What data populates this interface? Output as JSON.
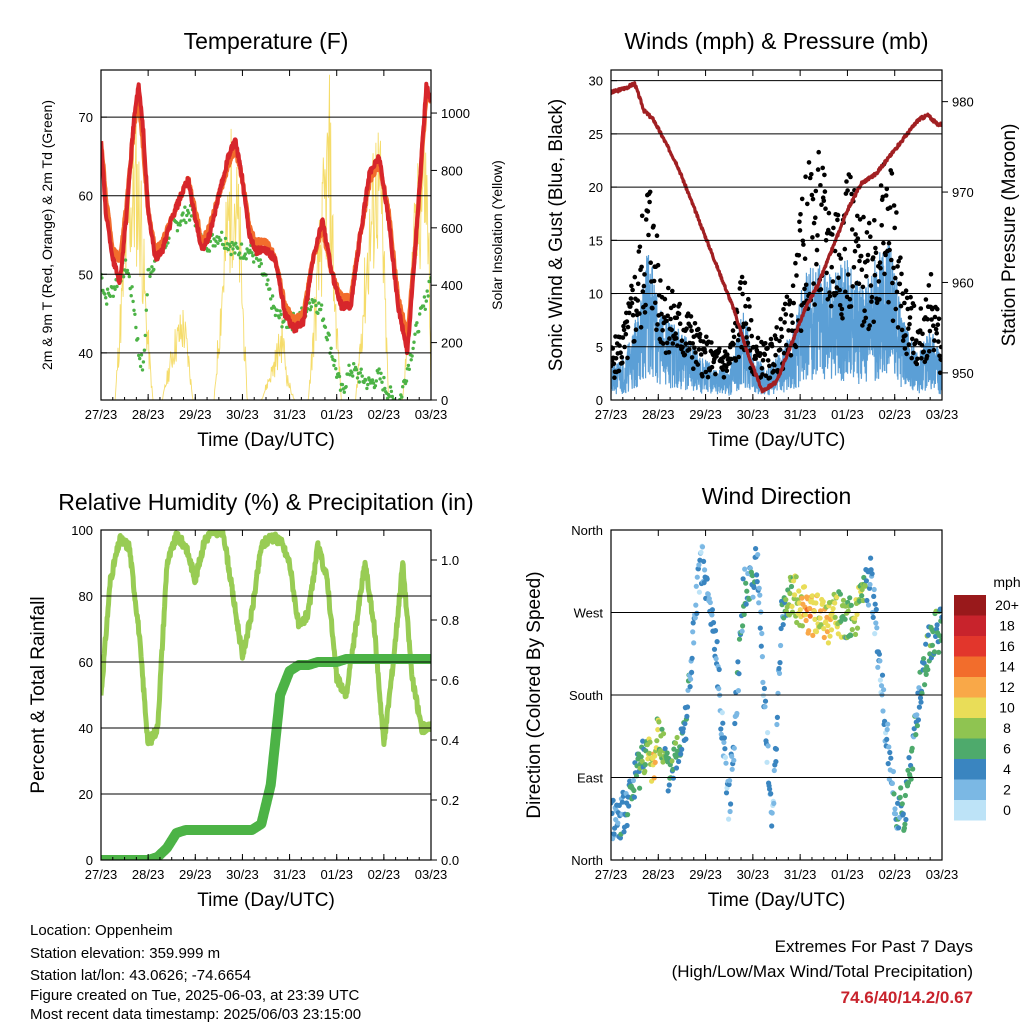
{
  "panels": {
    "temperature": {
      "title": "Temperature (F)",
      "xlabel": "Time (Day/UTC)",
      "ylabel_left": "2m & 9m T (Red, Orange) & 2m Td (Green)",
      "ylabel_right": "Solar Insolation (Yellow)"
    },
    "winds": {
      "title": "Winds (mph) & Pressure (mb)",
      "xlabel": "Time (Day/UTC)",
      "ylabel_left": "Sonic Wind & Gust (Blue, Black)",
      "ylabel_right": "Station Pressure (Maroon)"
    },
    "humidity": {
      "title": "Relative Humidity (%) & Precipitation (in)",
      "xlabel": "Time (Day/UTC)",
      "ylabel_left": "Percent & Total Rainfall"
    },
    "direction": {
      "title": "Wind Direction",
      "xlabel": "Time (Day/UTC)",
      "ylabel_left": "Direction (Colored By Speed)",
      "legend_title": "mph",
      "legend_labels": [
        "20+",
        "18",
        "16",
        "14",
        "12",
        "10",
        "8",
        "6",
        "4",
        "2",
        "0"
      ],
      "legend_colors": [
        "#99191b",
        "#c8232c",
        "#e2362c",
        "#f26d2c",
        "#f9a848",
        "#e9dd58",
        "#8fc451",
        "#4eaa6c",
        "#3a85c0",
        "#7bb8e4",
        "#bde3f7"
      ]
    }
  },
  "info": {
    "location": "Location: Oppenheim",
    "elevation": "Station elevation: 359.999 m",
    "latlon": "Station lat/lon: 43.0626; -74.6654",
    "created": "Figure created on Tue, 2025-06-03, at 23:39 UTC",
    "recent": "Most recent data timestamp: 2025/06/03 23:15:00"
  },
  "extremes": {
    "line1": "Extremes For Past 7 Days",
    "line2": "(High/Low/Max Wind/Total Precipitation)",
    "values": "74.6/40/14.2/0.67"
  },
  "colors": {
    "temp_2m": "#d7262b",
    "temp_9m": "#f26d2c",
    "dewpoint": "#4cb346",
    "solar": "#f5dc6a",
    "wind": "#5b9fd6",
    "gust": "#000000",
    "pressure": "#a11f22",
    "rh": "#98cc54",
    "precip": "#4cb346"
  },
  "chart_data": [
    {
      "type": "line",
      "name": "temperature",
      "x_ticks": [
        "27/23",
        "28/23",
        "29/23",
        "30/23",
        "31/23",
        "01/23",
        "02/23",
        "03/23"
      ],
      "x": [
        0,
        0.1,
        0.25,
        0.4,
        0.55,
        0.7,
        0.8,
        0.9,
        1.0,
        1.15,
        1.3,
        1.5,
        1.7,
        1.85,
        2.0,
        2.15,
        2.3,
        2.5,
        2.7,
        2.85,
        3.0,
        3.15,
        3.3,
        3.5,
        3.7,
        3.9,
        4.1,
        4.3,
        4.5,
        4.7,
        4.9,
        5.1,
        5.3,
        5.5,
        5.7,
        5.9,
        6.1,
        6.3,
        6.5,
        6.7,
        6.9,
        7.0
      ],
      "series": [
        {
          "name": "2m T",
          "values": [
            67,
            58,
            52,
            49,
            58,
            70,
            74,
            68,
            58,
            52,
            53,
            57,
            60,
            62,
            57,
            53,
            55,
            60,
            65,
            67,
            62,
            55,
            53,
            53,
            52,
            45,
            43,
            44,
            52,
            57,
            50,
            46,
            46,
            55,
            63,
            65,
            57,
            46,
            40,
            56,
            74,
            72
          ]
        },
        {
          "name": "9m T",
          "values": [
            67,
            60,
            53,
            52,
            59,
            69,
            72,
            66,
            58,
            53,
            54,
            57,
            60,
            62,
            58,
            54,
            56,
            60,
            64,
            66,
            62,
            56,
            54,
            54,
            52,
            46,
            44,
            45,
            52,
            56,
            50,
            47,
            47,
            55,
            62,
            64,
            58,
            47,
            42,
            56,
            73,
            72
          ]
        },
        {
          "name": "2m Td",
          "values": [
            50,
            47,
            48,
            50,
            51,
            46,
            40,
            38,
            50,
            52,
            53,
            56,
            57,
            58,
            57,
            54,
            54,
            55,
            54,
            53,
            53,
            53,
            52,
            49,
            45,
            44,
            44,
            45,
            47,
            45,
            40,
            35,
            38,
            37,
            36,
            37,
            35,
            33,
            38,
            43,
            47,
            50
          ]
        }
      ],
      "solar_series": {
        "name": "Solar Insolation",
        "x": [
          0,
          0.3,
          0.45,
          0.6,
          0.75,
          0.85,
          0.95,
          1.1,
          1.3,
          1.55,
          1.75,
          1.85,
          1.95,
          2.1,
          2.4,
          2.6,
          2.8,
          2.95,
          3.1,
          3.4,
          3.65,
          3.85,
          3.95,
          4.1,
          4.4,
          4.65,
          4.85,
          4.95,
          5.1,
          5.4,
          5.65,
          5.85,
          5.95,
          6.1,
          6.4,
          6.65,
          6.85,
          6.95,
          7.0
        ],
        "values": [
          0,
          0,
          500,
          900,
          1000,
          850,
          400,
          0,
          0,
          250,
          350,
          200,
          0,
          0,
          0,
          600,
          1050,
          700,
          0,
          0,
          150,
          300,
          100,
          0,
          0,
          700,
          1150,
          500,
          0,
          0,
          650,
          1050,
          900,
          0,
          0,
          700,
          1100,
          800,
          0
        ]
      },
      "ylim_left": [
        34,
        76
      ],
      "ylim_right": [
        0,
        1150
      ],
      "y_ticks_left": [
        40,
        50,
        60,
        70
      ],
      "y_ticks_right": [
        0,
        200,
        400,
        600,
        800,
        1000
      ]
    },
    {
      "type": "scatter",
      "name": "winds",
      "x_ticks": [
        "27/23",
        "28/23",
        "29/23",
        "30/23",
        "31/23",
        "01/23",
        "02/23",
        "03/23"
      ],
      "x": [
        0,
        0.3,
        0.6,
        0.8,
        1.0,
        1.3,
        1.6,
        1.9,
        2.2,
        2.5,
        2.8,
        3.0,
        3.3,
        3.6,
        3.9,
        4.1,
        4.4,
        4.7,
        5.0,
        5.3,
        5.6,
        5.9,
        6.2,
        6.5,
        6.8,
        7.0
      ],
      "series": [
        {
          "name": "Sonic Wind",
          "values": [
            2,
            3,
            6,
            10,
            6,
            5,
            4,
            3,
            2,
            2,
            6,
            3,
            2,
            3,
            5,
            8,
            9,
            8,
            9,
            7,
            9,
            10,
            5,
            3,
            5,
            2
          ]
        },
        {
          "name": "Gust",
          "values": [
            4,
            6,
            12,
            18,
            11,
            8,
            7,
            5,
            4,
            4,
            10,
            5,
            4,
            6,
            10,
            17,
            18,
            15,
            18,
            13,
            16,
            18,
            9,
            6,
            10,
            4
          ]
        }
      ],
      "pressure_series": {
        "name": "Station Pressure",
        "x": [
          0,
          0.3,
          0.5,
          0.7,
          0.9,
          1.1,
          1.4,
          1.7,
          2.0,
          2.3,
          2.6,
          2.9,
          3.2,
          3.5,
          3.8,
          4.1,
          4.4,
          4.7,
          5.0,
          5.3,
          5.6,
          5.9,
          6.2,
          6.5,
          6.7,
          6.9,
          7.0
        ],
        "values": [
          981,
          981.5,
          982,
          979,
          978,
          976,
          973,
          969,
          965,
          961,
          957,
          952,
          948,
          949,
          953,
          957,
          960,
          964,
          968,
          971,
          972,
          974,
          976,
          978,
          978.5,
          977.5,
          977.5
        ]
      },
      "ylim_left": [
        0,
        31
      ],
      "ylim_right": [
        947,
        983.5
      ],
      "y_ticks_left": [
        0,
        5,
        10,
        15,
        20,
        25,
        30
      ],
      "y_ticks_right": [
        950,
        960,
        970,
        980
      ]
    },
    {
      "type": "line",
      "name": "humidity",
      "x_ticks": [
        "27/23",
        "28/23",
        "29/23",
        "30/23",
        "31/23",
        "01/23",
        "02/23",
        "03/23"
      ],
      "x": [
        0,
        0.2,
        0.4,
        0.6,
        0.8,
        1.0,
        1.2,
        1.4,
        1.6,
        1.8,
        2.0,
        2.2,
        2.4,
        2.6,
        2.8,
        3.0,
        3.2,
        3.4,
        3.6,
        3.8,
        4.0,
        4.2,
        4.4,
        4.6,
        4.8,
        5.0,
        5.2,
        5.4,
        5.6,
        5.8,
        6.0,
        6.2,
        6.4,
        6.6,
        6.8,
        7.0
      ],
      "series": [
        {
          "name": "Relative Humidity",
          "values": [
            50,
            85,
            97,
            95,
            70,
            35,
            40,
            90,
            98,
            95,
            85,
            97,
            100,
            99,
            80,
            62,
            75,
            95,
            98,
            97,
            90,
            70,
            75,
            95,
            85,
            55,
            50,
            70,
            90,
            70,
            35,
            60,
            90,
            55,
            40,
            40
          ]
        },
        {
          "name": "Total Precipitation",
          "values": [
            0,
            0,
            0,
            0,
            0,
            0,
            0.01,
            0.04,
            0.09,
            0.1,
            0.1,
            0.1,
            0.1,
            0.1,
            0.1,
            0.1,
            0.1,
            0.12,
            0.25,
            0.55,
            0.63,
            0.65,
            0.65,
            0.66,
            0.66,
            0.66,
            0.67,
            0.67,
            0.67,
            0.67,
            0.67,
            0.67,
            0.67,
            0.67,
            0.67,
            0.67
          ]
        }
      ],
      "ylim_left": [
        0,
        100
      ],
      "ylim_right": [
        0,
        1.1
      ],
      "y_ticks_left": [
        0,
        20,
        40,
        60,
        80,
        100
      ],
      "y_ticks_right": [
        0.0,
        0.2,
        0.4,
        0.6,
        0.8,
        1.0
      ]
    },
    {
      "type": "scatter",
      "name": "direction",
      "x_ticks": [
        "27/23",
        "28/23",
        "29/23",
        "30/23",
        "31/23",
        "01/23",
        "02/23",
        "03/23"
      ],
      "y_ticks": [
        "North",
        "West",
        "South",
        "East",
        "North"
      ],
      "ylim": [
        0,
        360
      ],
      "x": [
        0.1,
        0.3,
        0.7,
        0.9,
        1.0,
        1.2,
        1.4,
        1.6,
        1.9,
        2.2,
        2.5,
        2.8,
        3.1,
        3.4,
        3.6,
        3.8,
        4.0,
        4.2,
        4.4,
        4.6,
        4.8,
        5.0,
        5.2,
        5.5,
        5.8,
        6.0,
        6.2,
        6.5,
        6.7,
        6.9
      ],
      "values": [
        45,
        50,
        120,
        100,
        150,
        90,
        120,
        160,
        330,
        240,
        60,
        290,
        320,
        30,
        260,
        290,
        280,
        270,
        265,
        260,
        270,
        260,
        270,
        310,
        150,
        60,
        50,
        170,
        230,
        250
      ],
      "speeds": [
        3,
        4,
        6,
        11,
        8,
        5,
        6,
        4,
        2,
        3,
        2,
        5,
        3,
        2,
        4,
        8,
        10,
        12,
        9,
        11,
        8,
        6,
        10,
        3,
        2,
        4,
        5,
        4,
        6,
        5
      ]
    }
  ]
}
